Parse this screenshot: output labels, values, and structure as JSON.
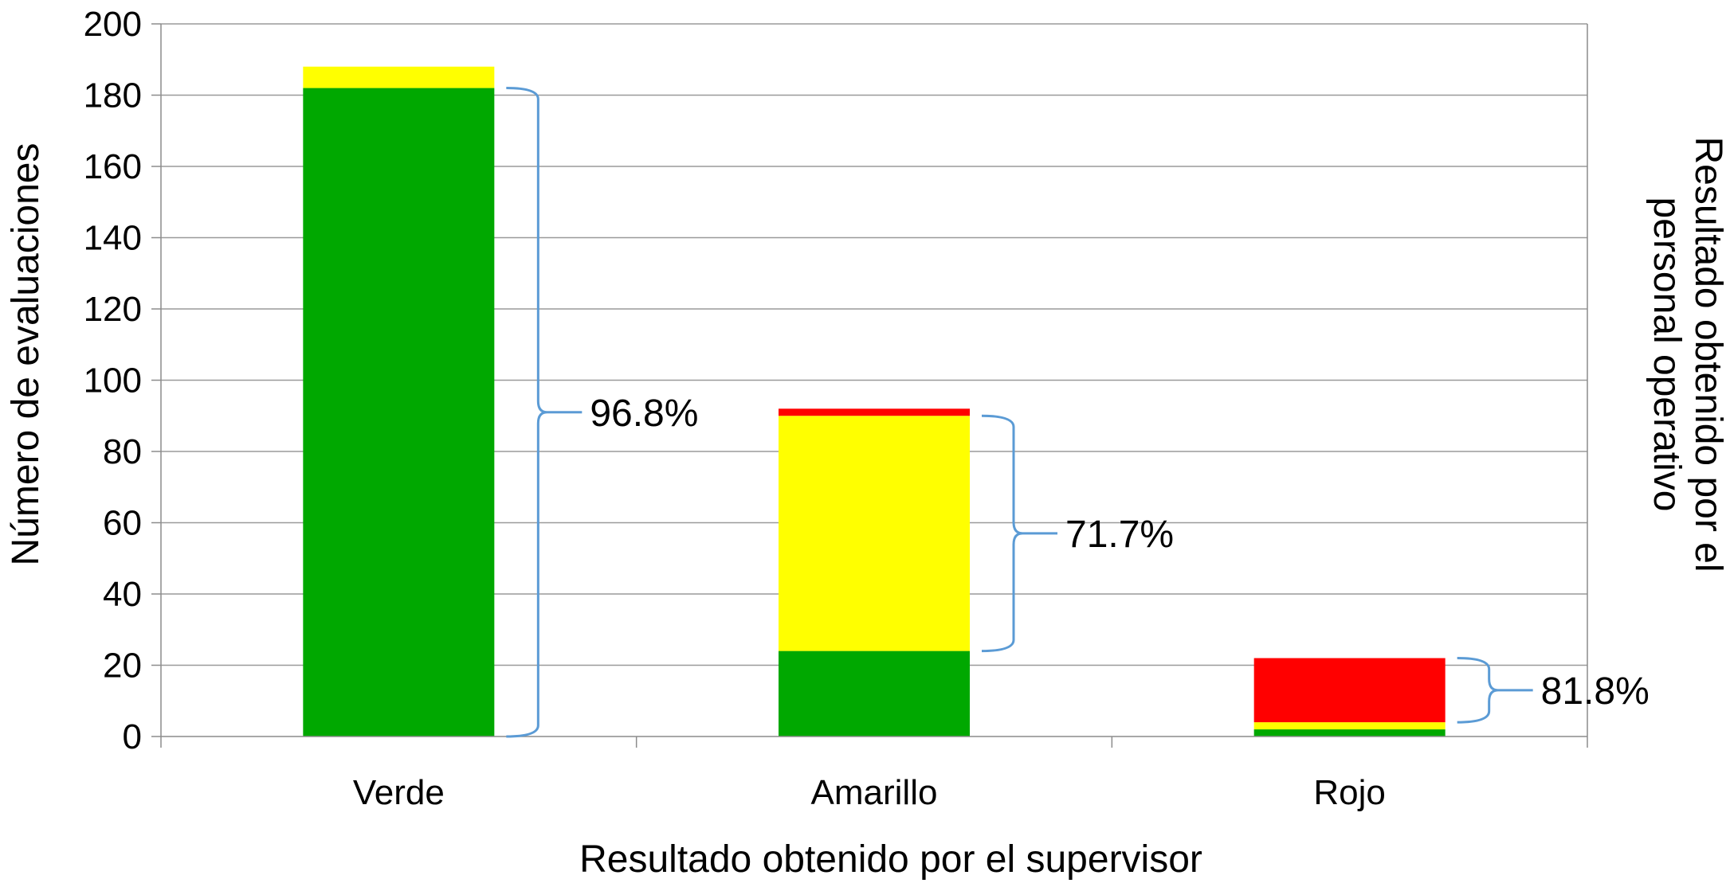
{
  "chart_data": {
    "type": "bar",
    "stacked": true,
    "categories": [
      "Verde",
      "Amarillo",
      "Rojo"
    ],
    "series": [
      {
        "color": "#00A800",
        "values": [
          182,
          24,
          2
        ]
      },
      {
        "color": "#FFFF00",
        "values": [
          6,
          66,
          2
        ]
      },
      {
        "color": "#FF0000",
        "values": [
          0,
          2,
          18
        ]
      }
    ],
    "annotations": [
      {
        "category": "Verde",
        "text": "96.8%",
        "span": [
          0,
          182
        ]
      },
      {
        "category": "Amarillo",
        "text": "71.7%",
        "span": [
          24,
          90
        ]
      },
      {
        "category": "Rojo",
        "text": "81.8%",
        "span": [
          4,
          22
        ]
      }
    ],
    "xlabel": "Resultado obtenido por el supervisor",
    "ylabel": "Número de evaluaciones",
    "ylabel_right": [
      "Resultado obtenido por el",
      "personal operativo"
    ],
    "ylim": [
      0,
      200
    ],
    "yticks": [
      0,
      20,
      40,
      60,
      80,
      100,
      120,
      140,
      160,
      180,
      200
    ],
    "grid": true,
    "legend": "none",
    "bracket_color": "#5B9BD5"
  }
}
